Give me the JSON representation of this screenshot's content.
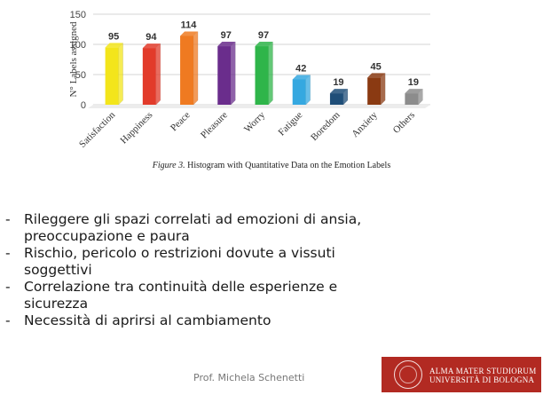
{
  "chart_data": {
    "type": "bar",
    "categories": [
      "Satisfaction",
      "Happiness",
      "Peace",
      "Pleasure",
      "Worry",
      "Fatigue",
      "Boredom",
      "Anxiety",
      "Others"
    ],
    "values": [
      95,
      94,
      114,
      97,
      97,
      42,
      19,
      45,
      19
    ],
    "colors": [
      "#f3e51b",
      "#e23b2a",
      "#ef7a21",
      "#6a2d8c",
      "#2fb54a",
      "#35a8e0",
      "#1f4e78",
      "#8a3a12",
      "#8c8c8c"
    ],
    "ylabel": "N° Labels assigned",
    "yticks": [
      0,
      50,
      100,
      150
    ],
    "ylim": [
      0,
      150
    ],
    "grid": true
  },
  "caption": {
    "figure": "Figure 3.",
    "text": " Histogram with Quantitative Data on the Emotion Labels"
  },
  "bullets": [
    "Rileggere gli spazi correlati ad emozioni di ansia, preoccupazione e paura",
    "Rischio, pericolo o restrizioni dovute a vissuti soggettivi",
    "Correlazione tra continuità delle esperienze e sicurezza",
    "Necessità di aprirsi al cambiamento"
  ],
  "footer": {
    "author": "Prof. Michela Schenetti"
  },
  "logo": {
    "line1": "ALMA MATER STUDIORUM",
    "line2": "UNIVERSITÀ DI BOLOGNA",
    "brand_color": "#b22a22"
  }
}
